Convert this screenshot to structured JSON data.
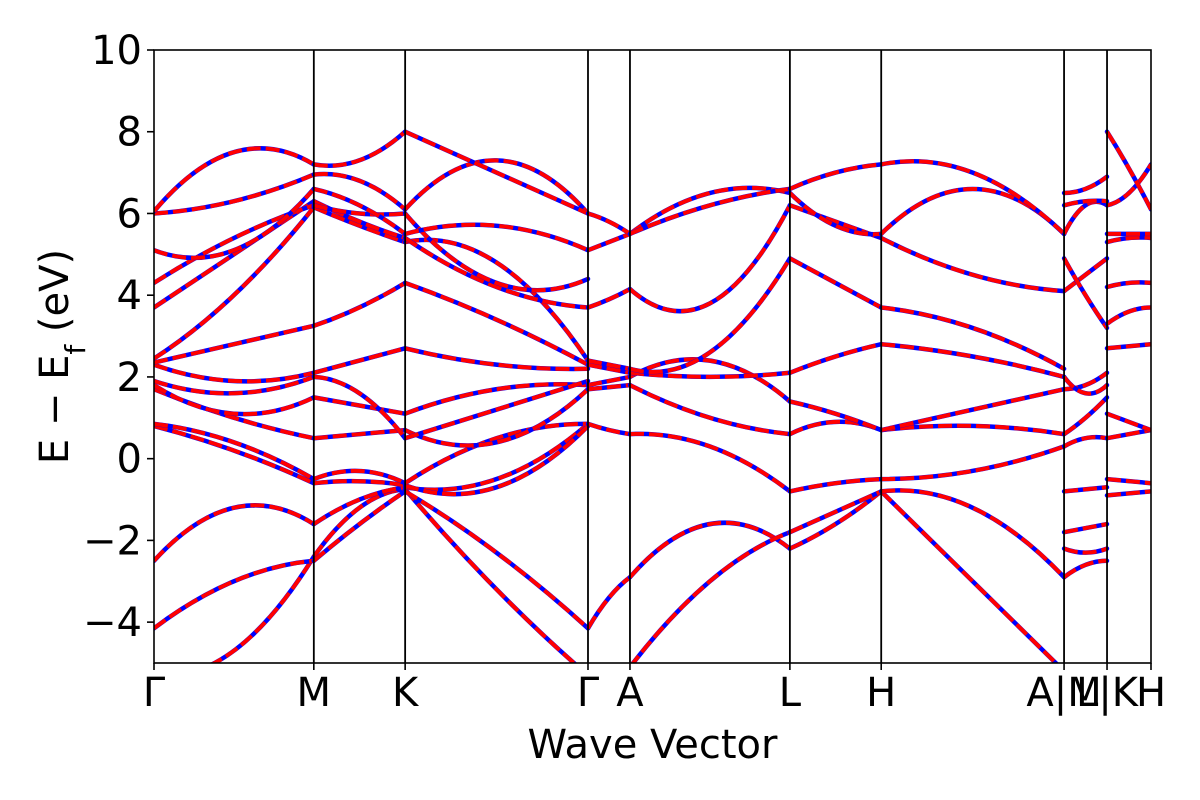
{
  "chart_data": {
    "type": "line",
    "title": "",
    "xlabel": "Wave Vector",
    "ylabel": "E − E",
    "ylabel_sub": "f",
    "ylabel_unit": " (eV)",
    "ylim": [
      -5,
      10
    ],
    "xlim": [
      0,
      1
    ],
    "yticks": [
      -4,
      -2,
      0,
      2,
      4,
      6,
      8,
      10
    ],
    "ytick_labels": [
      "−4",
      "−2",
      "0",
      "2",
      "4",
      "6",
      "8",
      "10"
    ],
    "kpoints": [
      {
        "label": "Γ",
        "x": 0.0
      },
      {
        "label": "M",
        "x": 0.1603
      },
      {
        "label": "K",
        "x": 0.2519
      },
      {
        "label": "Γ",
        "x": 0.4353
      },
      {
        "label": "A",
        "x": 0.4774
      },
      {
        "label": "L",
        "x": 0.6378
      },
      {
        "label": "H",
        "x": 0.7294
      },
      {
        "label": "A|M",
        "x": 0.9128
      },
      {
        "label": "L|K",
        "x": 0.9559
      },
      {
        "label": "H",
        "x": 1.0
      }
    ],
    "overlay_colors": {
      "primary": "#ff0000",
      "secondary": "#0000ff"
    },
    "grid": false,
    "legend": "none",
    "segments": [
      {
        "x0": 0.0,
        "x1": 0.1603,
        "bands": [
          [
            -5.3,
            -4.7,
            -2.4
          ],
          [
            -4.15,
            -3.0,
            -2.5
          ],
          [
            -2.5,
            -1.2,
            -1.6
          ],
          [
            0.8,
            0.2,
            -0.6
          ],
          [
            0.85,
            0.4,
            -0.5
          ],
          [
            1.7,
            1.0,
            0.5
          ],
          [
            1.8,
            1.1,
            1.5
          ],
          [
            1.9,
            1.6,
            2.0
          ],
          [
            2.3,
            1.9,
            2.1
          ],
          [
            2.35,
            2.8,
            3.25
          ],
          [
            2.45,
            4.0,
            6.15
          ],
          [
            3.7,
            5.0,
            6.3
          ],
          [
            4.3,
            5.4,
            6.2
          ],
          [
            5.1,
            5.1,
            6.6
          ],
          [
            6.0,
            6.3,
            6.95
          ],
          [
            6.05,
            7.5,
            7.2
          ]
        ]
      },
      {
        "x0": 0.1603,
        "x1": 0.2519,
        "bands": [
          [
            -2.4,
            -1.2,
            -0.75
          ],
          [
            -2.5,
            -1.6,
            -0.8
          ],
          [
            -1.6,
            -1.0,
            -0.7
          ],
          [
            -0.6,
            -0.55,
            -0.65
          ],
          [
            -0.5,
            -0.3,
            -0.6
          ],
          [
            0.5,
            0.6,
            0.7
          ],
          [
            1.5,
            1.3,
            1.1
          ],
          [
            2.0,
            1.6,
            0.5
          ],
          [
            2.1,
            2.4,
            2.7
          ],
          [
            3.25,
            3.7,
            4.3
          ],
          [
            6.15,
            5.7,
            5.3
          ],
          [
            6.3,
            5.8,
            5.4
          ],
          [
            6.2,
            6.0,
            6.0
          ],
          [
            6.6,
            6.2,
            5.5
          ],
          [
            6.95,
            6.8,
            6.1
          ],
          [
            7.2,
            7.3,
            8.0
          ]
        ]
      },
      {
        "x0": 0.2519,
        "x1": 0.4353,
        "bands": [
          [
            -0.75,
            -3.2,
            -5.3
          ],
          [
            -0.8,
            -2.3,
            -4.15
          ],
          [
            -0.7,
            -0.5,
            0.85
          ],
          [
            -0.65,
            -0.7,
            0.8
          ],
          [
            -0.6,
            0.5,
            0.85
          ],
          [
            0.7,
            0.4,
            1.7
          ],
          [
            1.1,
            1.7,
            1.8
          ],
          [
            0.5,
            1.2,
            1.9
          ],
          [
            2.7,
            2.3,
            2.2
          ],
          [
            4.3,
            3.4,
            2.3
          ],
          [
            5.3,
            4.8,
            2.4
          ],
          [
            5.4,
            4.2,
            3.7
          ],
          [
            6.0,
            4.3,
            4.4
          ],
          [
            5.5,
            5.7,
            5.1
          ],
          [
            6.1,
            7.3,
            6.0
          ],
          [
            8.0,
            7.0,
            6.0
          ]
        ]
      },
      {
        "x0": 0.4353,
        "x1": 0.4774,
        "bands": [
          [
            -4.15,
            -3.4,
            -2.9
          ],
          [
            -5.3,
            -5.2,
            -5.1
          ],
          [
            0.85,
            0.7,
            0.6
          ],
          [
            1.7,
            1.75,
            1.8
          ],
          [
            1.8,
            1.9,
            2.0
          ],
          [
            2.3,
            2.2,
            2.1
          ],
          [
            2.4,
            2.3,
            2.2
          ],
          [
            3.7,
            3.9,
            4.15
          ],
          [
            5.1,
            5.3,
            5.5
          ],
          [
            6.0,
            5.8,
            5.5
          ]
        ]
      },
      {
        "x0": 0.4774,
        "x1": 0.6378,
        "bands": [
          [
            -2.9,
            -1.6,
            -2.2
          ],
          [
            -5.1,
            -3.0,
            -1.8
          ],
          [
            0.6,
            0.3,
            -0.8
          ],
          [
            1.8,
            1.0,
            0.6
          ],
          [
            2.0,
            2.4,
            1.4
          ],
          [
            2.1,
            2.0,
            2.1
          ],
          [
            2.2,
            2.6,
            4.9
          ],
          [
            4.15,
            3.8,
            6.2
          ],
          [
            5.5,
            6.5,
            6.5
          ],
          [
            5.5,
            6.2,
            6.6
          ]
        ]
      },
      {
        "x0": 0.6378,
        "x1": 0.7294,
        "bands": [
          [
            -2.2,
            -1.6,
            -0.8
          ],
          [
            -1.8,
            -1.3,
            -0.8
          ],
          [
            -0.8,
            -0.6,
            -0.5
          ],
          [
            0.6,
            0.9,
            0.7
          ],
          [
            1.4,
            1.1,
            0.7
          ],
          [
            2.1,
            2.5,
            2.8
          ],
          [
            4.9,
            4.3,
            3.7
          ],
          [
            6.2,
            5.8,
            5.4
          ],
          [
            6.5,
            5.7,
            5.5
          ],
          [
            6.6,
            7.0,
            7.2
          ]
        ]
      },
      {
        "x0": 0.7294,
        "x1": 0.9128,
        "bands": [
          [
            -0.8,
            -3.0,
            -5.2
          ],
          [
            -0.8,
            -1.2,
            -2.9
          ],
          [
            -0.5,
            -0.3,
            0.3
          ],
          [
            0.7,
            0.8,
            0.6
          ],
          [
            0.7,
            1.2,
            1.7
          ],
          [
            2.8,
            2.5,
            2.0
          ],
          [
            3.7,
            3.2,
            2.2
          ],
          [
            5.4,
            4.5,
            4.1
          ],
          [
            5.5,
            6.6,
            5.5
          ],
          [
            7.2,
            7.0,
            5.5
          ]
        ]
      },
      {
        "x0": 0.9128,
        "x1": 0.9559,
        "bands": [
          [
            -2.9,
            -2.6,
            -2.5
          ],
          [
            -2.2,
            -2.3,
            -2.2
          ],
          [
            -1.8,
            -1.7,
            -1.6
          ],
          [
            -0.8,
            -0.75,
            -0.7
          ],
          [
            0.3,
            0.5,
            0.5
          ],
          [
            0.6,
            1.0,
            1.5
          ],
          [
            1.7,
            1.8,
            2.1
          ],
          [
            2.0,
            1.6,
            1.8
          ],
          [
            4.1,
            4.5,
            4.9
          ],
          [
            4.9,
            4.0,
            3.2
          ],
          [
            5.5,
            6.2,
            6.2
          ],
          [
            6.2,
            6.3,
            6.3
          ],
          [
            6.5,
            6.6,
            6.9
          ]
        ]
      },
      {
        "x0": 0.9559,
        "x1": 1.0,
        "bands": [
          [
            -0.9,
            -0.85,
            -0.8
          ],
          [
            -0.5,
            -0.55,
            -0.6
          ],
          [
            0.5,
            0.6,
            0.7
          ],
          [
            1.1,
            0.9,
            0.7
          ],
          [
            2.7,
            2.75,
            2.8
          ],
          [
            3.3,
            3.6,
            3.7
          ],
          [
            4.2,
            4.3,
            4.3
          ],
          [
            5.3,
            5.4,
            5.4
          ],
          [
            5.5,
            5.5,
            5.5
          ],
          [
            6.2,
            6.5,
            7.2
          ],
          [
            8.0,
            7.1,
            6.1
          ]
        ]
      }
    ]
  }
}
